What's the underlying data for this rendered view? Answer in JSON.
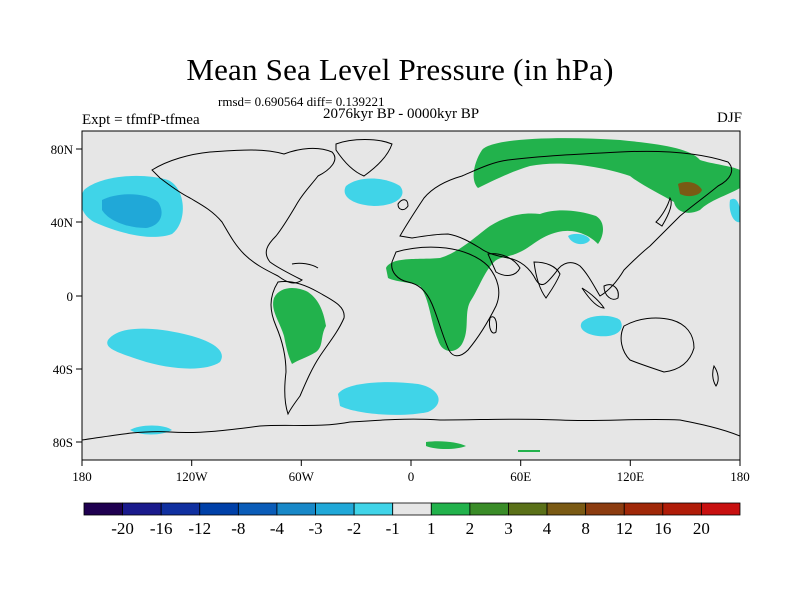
{
  "title": "Mean Sea Level Pressure (in hPa)",
  "stats": "rmsd= 0.690564 diff= 0.139221",
  "period": "2076kyr BP - 0000kyr BP",
  "experiment": "Expt = tfmfP-tfmea",
  "season": "DJF",
  "axes": {
    "x_ticks": [
      "180",
      "120W",
      "60W",
      "0",
      "60E",
      "120E",
      "180"
    ],
    "y_ticks": [
      "80N",
      "40N",
      "0",
      "40S",
      "80S"
    ]
  },
  "colorbar": {
    "labels": [
      "-20",
      "-16",
      "-12",
      "-8",
      "-4",
      "-3",
      "-2",
      "-1",
      "1",
      "2",
      "3",
      "4",
      "8",
      "12",
      "16",
      "20"
    ],
    "colors": [
      "#1f0050",
      "#1a1a8c",
      "#1030a0",
      "#0040a8",
      "#0a5cb8",
      "#1888c8",
      "#20a8d8",
      "#40d4e8",
      "#e6e6e6",
      "#22b24c",
      "#3a8c28",
      "#5a7018",
      "#7a5a14",
      "#8c3c10",
      "#a02808",
      "#b01c08",
      "#c81010"
    ]
  },
  "map": {
    "background_color": "#e6e6e6",
    "land_outline_color": "#000000",
    "anomaly_regions": [
      {
        "name": "north-pacific-low",
        "category": "-2 to -1",
        "color": "#40d4e8"
      },
      {
        "name": "north-pacific-core",
        "category": "-3 to -2",
        "color": "#20a8d8"
      },
      {
        "name": "north-atlantic-low",
        "category": "-2 to -1",
        "color": "#40d4e8"
      },
      {
        "name": "south-pacific-low",
        "category": "-2 to -1",
        "color": "#40d4e8"
      },
      {
        "name": "south-atlantic-low",
        "category": "-2 to -1",
        "color": "#40d4e8"
      },
      {
        "name": "indian-ocean-low",
        "category": "-2 to -1",
        "color": "#40d4e8"
      },
      {
        "name": "eurasia-high",
        "category": "1 to 2",
        "color": "#22b24c"
      },
      {
        "name": "africa-asia-high",
        "category": "1 to 2",
        "color": "#22b24c"
      },
      {
        "name": "south-america-high",
        "category": "1 to 2",
        "color": "#22b24c"
      },
      {
        "name": "siberia-core",
        "category": "4 to 8",
        "color": "#7a5a14"
      }
    ]
  }
}
